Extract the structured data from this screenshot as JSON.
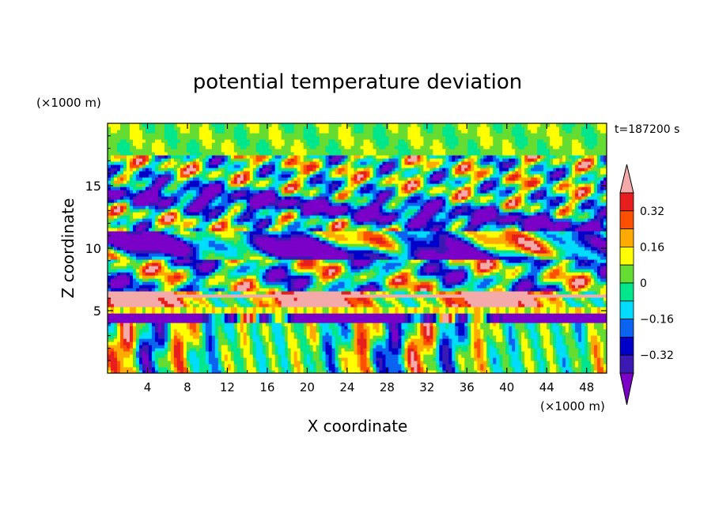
{
  "chart_data": {
    "type": "heatmap",
    "title": "potential temperature deviation",
    "time_label": "t=187200 s",
    "xlabel": "X coordinate",
    "ylabel": "Z coordinate",
    "x_unit": "(×1000 m)",
    "y_unit": "(×1000 m)",
    "xlim": [
      0,
      50
    ],
    "ylim": [
      0,
      20
    ],
    "x_ticks": [
      4,
      8,
      12,
      16,
      20,
      24,
      28,
      32,
      36,
      40,
      44,
      48
    ],
    "y_ticks": [
      5,
      10,
      15
    ],
    "colorbar": {
      "levels": [
        -0.48,
        -0.4,
        -0.32,
        -0.24,
        -0.16,
        -0.08,
        0,
        0.08,
        0.16,
        0.24,
        0.32,
        0.4
      ],
      "tick_values": [
        -0.32,
        -0.16,
        0,
        0.16,
        0.32
      ],
      "tick_labels": [
        "−0.32",
        "−0.16",
        "0",
        "0.16",
        "0.32"
      ],
      "colors": [
        "#7b00c8",
        "#3b1ab4",
        "#0000c8",
        "#0a64f0",
        "#00dcff",
        "#00e68c",
        "#64dc32",
        "#ffff00",
        "#ffaa00",
        "#ff5000",
        "#e61e1e",
        "#f5aaaa"
      ]
    }
  }
}
